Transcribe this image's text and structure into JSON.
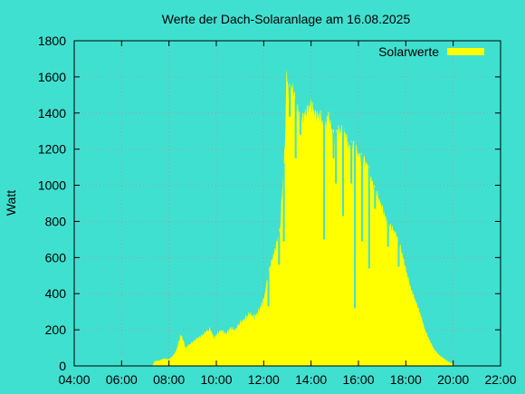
{
  "chart_data": {
    "type": "area",
    "title": "Werte der Dach-Solaranlage am 16.08.2025",
    "xlabel": "",
    "ylabel": "Watt",
    "x_unit": "hour of day",
    "xlim": [
      4,
      22
    ],
    "ylim": [
      0,
      1800
    ],
    "x_ticks": [
      4,
      6,
      8,
      10,
      12,
      14,
      16,
      18,
      20,
      22
    ],
    "x_tick_labels": [
      "04:00",
      "06:00",
      "08:00",
      "10:00",
      "12:00",
      "14:00",
      "16:00",
      "18:00",
      "20:00",
      "22:00"
    ],
    "y_ticks": [
      0,
      200,
      400,
      600,
      800,
      1000,
      1200,
      1400,
      1600,
      1800
    ],
    "y_tick_labels": [
      "0",
      "200",
      "400",
      "600",
      "800",
      "1000",
      "1200",
      "1400",
      "1600",
      "1800"
    ],
    "grid": true,
    "legend_position": "top-right",
    "series": [
      {
        "name": "Solarwerte",
        "color": "#ffff00",
        "points": [
          [
            7.3,
            0
          ],
          [
            7.4,
            25
          ],
          [
            7.6,
            30
          ],
          [
            7.8,
            40
          ],
          [
            8.0,
            35
          ],
          [
            8.2,
            60
          ],
          [
            8.3,
            80
          ],
          [
            8.4,
            120
          ],
          [
            8.5,
            170
          ],
          [
            8.6,
            140
          ],
          [
            8.7,
            95
          ],
          [
            8.8,
            110
          ],
          [
            9.0,
            130
          ],
          [
            9.2,
            150
          ],
          [
            9.4,
            165
          ],
          [
            9.6,
            190
          ],
          [
            9.75,
            200
          ],
          [
            9.9,
            150
          ],
          [
            10.0,
            170
          ],
          [
            10.2,
            195
          ],
          [
            10.4,
            175
          ],
          [
            10.6,
            205
          ],
          [
            10.8,
            195
          ],
          [
            11.0,
            235
          ],
          [
            11.2,
            255
          ],
          [
            11.4,
            285
          ],
          [
            11.6,
            265
          ],
          [
            11.8,
            300
          ],
          [
            12.0,
            360
          ],
          [
            12.1,
            430
          ],
          [
            12.2,
            520
          ],
          [
            12.3,
            560
          ],
          [
            12.4,
            600
          ],
          [
            12.5,
            650
          ],
          [
            12.6,
            700
          ],
          [
            12.7,
            760
          ],
          [
            12.8,
            1000
          ],
          [
            12.9,
            1200
          ],
          [
            12.97,
            1610
          ],
          [
            13.05,
            1500
          ],
          [
            13.2,
            1540
          ],
          [
            13.4,
            1420
          ],
          [
            13.6,
            1350
          ],
          [
            13.8,
            1400
          ],
          [
            14.0,
            1440
          ],
          [
            14.2,
            1380
          ],
          [
            14.4,
            1370
          ],
          [
            14.6,
            1300
          ],
          [
            14.7,
            1390
          ],
          [
            14.8,
            1340
          ],
          [
            15.0,
            1240
          ],
          [
            15.1,
            1300
          ],
          [
            15.2,
            1290
          ],
          [
            15.4,
            1300
          ],
          [
            15.6,
            1200
          ],
          [
            15.8,
            1230
          ],
          [
            16.0,
            1160
          ],
          [
            16.2,
            1140
          ],
          [
            16.4,
            1100
          ],
          [
            16.6,
            1000
          ],
          [
            16.8,
            940
          ],
          [
            17.0,
            870
          ],
          [
            17.2,
            790
          ],
          [
            17.4,
            760
          ],
          [
            17.6,
            720
          ],
          [
            17.8,
            640
          ],
          [
            18.0,
            530
          ],
          [
            18.2,
            430
          ],
          [
            18.4,
            360
          ],
          [
            18.6,
            290
          ],
          [
            18.8,
            200
          ],
          [
            19.0,
            140
          ],
          [
            19.2,
            90
          ],
          [
            19.4,
            60
          ],
          [
            19.6,
            40
          ],
          [
            19.8,
            22
          ],
          [
            20.0,
            10
          ],
          [
            20.05,
            0
          ]
        ],
        "dips": [
          [
            12.2,
            330
          ],
          [
            12.65,
            560
          ],
          [
            12.85,
            690
          ],
          [
            13.1,
            1380
          ],
          [
            13.35,
            1150
          ],
          [
            13.55,
            1280
          ],
          [
            14.55,
            700
          ],
          [
            14.95,
            1150
          ],
          [
            15.05,
            1010
          ],
          [
            15.35,
            830
          ],
          [
            15.7,
            1010
          ],
          [
            15.85,
            320
          ],
          [
            16.15,
            690
          ],
          [
            16.45,
            540
          ],
          [
            16.7,
            870
          ],
          [
            17.25,
            660
          ],
          [
            17.7,
            550
          ]
        ]
      }
    ]
  }
}
